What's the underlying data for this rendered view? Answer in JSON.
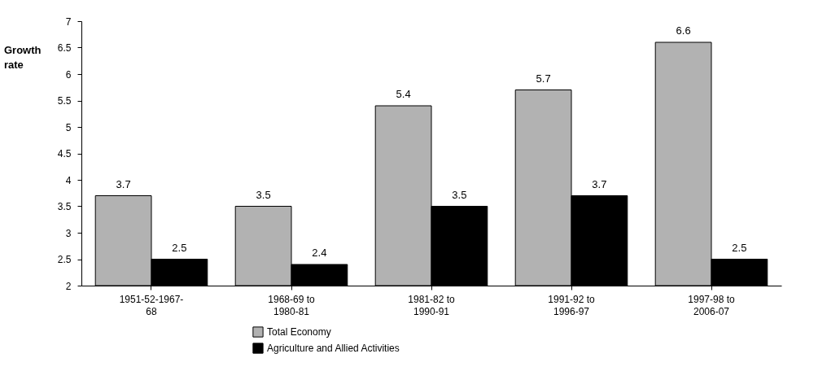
{
  "chart_data": {
    "type": "bar",
    "ylabel": "Growth\nrate",
    "categories": [
      "1951-52-1967-\n68",
      "1968-69 to\n1980-81",
      "1981-82 to\n1990-91",
      "1991-92 to\n1996-97",
      "1997-98 to\n2006-07"
    ],
    "series": [
      {
        "name": "Total Economy",
        "color": "#b2b2b2",
        "values": [
          3.7,
          3.5,
          5.4,
          5.7,
          6.6
        ]
      },
      {
        "name": "Agriculture and Allied Activities",
        "color": "#000000",
        "values": [
          2.5,
          2.4,
          3.5,
          3.7,
          2.5
        ]
      }
    ],
    "ylim": [
      2,
      7
    ],
    "yticks": [
      2,
      2.5,
      3,
      3.5,
      4,
      4.5,
      5,
      5.5,
      6,
      6.5,
      7
    ],
    "data_labels": true,
    "grid": false,
    "legend": "bottom left"
  }
}
